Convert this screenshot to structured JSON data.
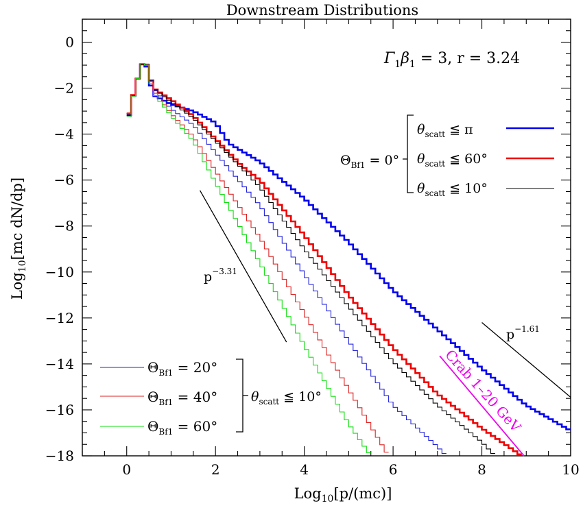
{
  "chart_data": {
    "type": "line",
    "title": "Downstream Distributions",
    "xlabel": {
      "pre": "Log",
      "sub": "10",
      "post": "[p/(mc)]"
    },
    "ylabel": {
      "pre": "Log",
      "sub": "10",
      "post": "[mc dN/dp]"
    },
    "xlim": [
      -1,
      10
    ],
    "ylim": [
      -18,
      1
    ],
    "grid": false,
    "x_ticks": [
      "0",
      "2",
      "4",
      "6",
      "8",
      "10"
    ],
    "y_ticks": [
      "0",
      "−2",
      "−4",
      "−6",
      "−8",
      "−10",
      "−12",
      "−14",
      "−16",
      "−18"
    ],
    "params_label": {
      "g": "Γ",
      "g_sub": "1",
      "b": "β",
      "b_sub": "1",
      "rest": " = 3,  r = 3.24"
    },
    "legend_top": {
      "angle_label": "Θ",
      "angle_sub": "Bf1",
      "angle_value": " = 0°",
      "entries": [
        {
          "theta": "θ",
          "sub": "scatt",
          "cond": " ≦ π"
        },
        {
          "theta": "θ",
          "sub": "scatt",
          "cond": " ≦ 60°"
        },
        {
          "theta": "θ",
          "sub": "scatt",
          "cond": " ≦ 10°"
        }
      ]
    },
    "legend_bottom": {
      "entries": [
        {
          "theta": "Θ",
          "sub": "Bf1",
          "cond": " = 20°"
        },
        {
          "theta": "Θ",
          "sub": "Bf1",
          "cond": " = 40°"
        },
        {
          "theta": "Θ",
          "sub": "Bf1",
          "cond": " = 60°"
        }
      ],
      "group_theta": "θ",
      "group_sub": "scatt",
      "group_cond": " ≦ 10°"
    },
    "annotations": {
      "slope_steep": {
        "base": "p",
        "exp": "−3.31"
      },
      "slope_flat": {
        "base": "p",
        "exp": "−1.61"
      },
      "crab": "Crab  1–20 GeV"
    },
    "series": [
      {
        "color": "#0000ee",
        "width": 2.6,
        "step": 0.1,
        "points": [
          [
            0.0,
            -3.6
          ],
          [
            0.2,
            -1.9
          ],
          [
            0.4,
            -0.65
          ],
          [
            0.6,
            -2.3
          ],
          [
            0.8,
            -2.5
          ],
          [
            1.0,
            -2.7
          ],
          [
            1.5,
            -3.0
          ],
          [
            2.0,
            -3.5
          ],
          [
            2.3,
            -4.4
          ],
          [
            3.0,
            -5.2
          ],
          [
            4.0,
            -6.8
          ],
          [
            5.0,
            -8.7
          ],
          [
            6.0,
            -10.8
          ],
          [
            7.0,
            -12.5
          ],
          [
            8.0,
            -14.2
          ],
          [
            9.0,
            -15.8
          ],
          [
            10.0,
            -16.9
          ]
        ]
      },
      {
        "color": "#ee0000",
        "width": 2.6,
        "step": 0.1,
        "points": [
          [
            0.0,
            -3.5
          ],
          [
            0.2,
            -1.9
          ],
          [
            0.4,
            -0.65
          ],
          [
            0.6,
            -2.0
          ],
          [
            1.0,
            -2.5
          ],
          [
            1.5,
            -3.2
          ],
          [
            2.0,
            -4.2
          ],
          [
            2.6,
            -5.4
          ],
          [
            3.0,
            -6.0
          ],
          [
            4.0,
            -8.4
          ],
          [
            5.0,
            -11.0
          ],
          [
            6.0,
            -13.3
          ],
          [
            7.0,
            -15.3
          ],
          [
            8.0,
            -16.8
          ],
          [
            8.9,
            -18.0
          ]
        ]
      },
      {
        "color": "#000000",
        "width": 1.1,
        "step": 0.1,
        "points": [
          [
            0.0,
            -3.6
          ],
          [
            0.2,
            -1.9
          ],
          [
            0.4,
            -0.65
          ],
          [
            0.6,
            -2.0
          ],
          [
            1.0,
            -2.6
          ],
          [
            1.5,
            -3.3
          ],
          [
            2.0,
            -4.3
          ],
          [
            3.0,
            -6.3
          ],
          [
            4.0,
            -9.0
          ],
          [
            5.0,
            -11.5
          ],
          [
            6.0,
            -13.9
          ],
          [
            7.0,
            -15.8
          ],
          [
            8.0,
            -17.4
          ],
          [
            8.3,
            -18.0
          ]
        ]
      },
      {
        "color": "#2222dd",
        "width": 1.1,
        "step": 0.1,
        "points": [
          [
            0.0,
            -3.5
          ],
          [
            0.2,
            -1.9
          ],
          [
            0.4,
            -0.6
          ],
          [
            0.6,
            -2.0
          ],
          [
            1.0,
            -2.9
          ],
          [
            1.5,
            -3.6
          ],
          [
            2.0,
            -4.8
          ],
          [
            3.0,
            -7.1
          ],
          [
            4.0,
            -10.1
          ],
          [
            5.0,
            -13.0
          ],
          [
            6.0,
            -15.8
          ],
          [
            7.0,
            -17.6
          ],
          [
            7.2,
            -18.0
          ]
        ]
      },
      {
        "color": "#dd2222",
        "width": 1.1,
        "step": 0.1,
        "points": [
          [
            0.0,
            -3.5
          ],
          [
            0.2,
            -1.9
          ],
          [
            0.4,
            -0.6
          ],
          [
            0.6,
            -2.1
          ],
          [
            1.0,
            -3.1
          ],
          [
            1.5,
            -4.1
          ],
          [
            2.0,
            -5.6
          ],
          [
            3.0,
            -8.5
          ],
          [
            4.0,
            -11.8
          ],
          [
            5.0,
            -15.1
          ],
          [
            5.9,
            -18.0
          ]
        ]
      },
      {
        "color": "#11dd11",
        "width": 1.1,
        "step": 0.1,
        "points": [
          [
            0.0,
            -3.7
          ],
          [
            0.2,
            -1.9
          ],
          [
            0.4,
            -0.6
          ],
          [
            0.6,
            -2.2
          ],
          [
            1.0,
            -3.2
          ],
          [
            1.5,
            -4.3
          ],
          [
            2.0,
            -6.1
          ],
          [
            3.0,
            -9.6
          ],
          [
            4.0,
            -13.2
          ],
          [
            5.0,
            -16.6
          ],
          [
            5.5,
            -18.0
          ]
        ]
      }
    ],
    "reference_lines": [
      {
        "name": "slope-3.31",
        "color": "#000000",
        "x1": 1.65,
        "y1": -6.45,
        "x2": 3.6,
        "y2": -13.05
      },
      {
        "name": "slope-1.61",
        "color": "#000000",
        "x1": 8.0,
        "y1": -12.2,
        "x2": 10.0,
        "y2": -15.45
      },
      {
        "name": "crab",
        "color": "#ee00ee",
        "x1": 7.05,
        "y1": -13.65,
        "x2": 8.95,
        "y2": -18.0
      }
    ]
  }
}
